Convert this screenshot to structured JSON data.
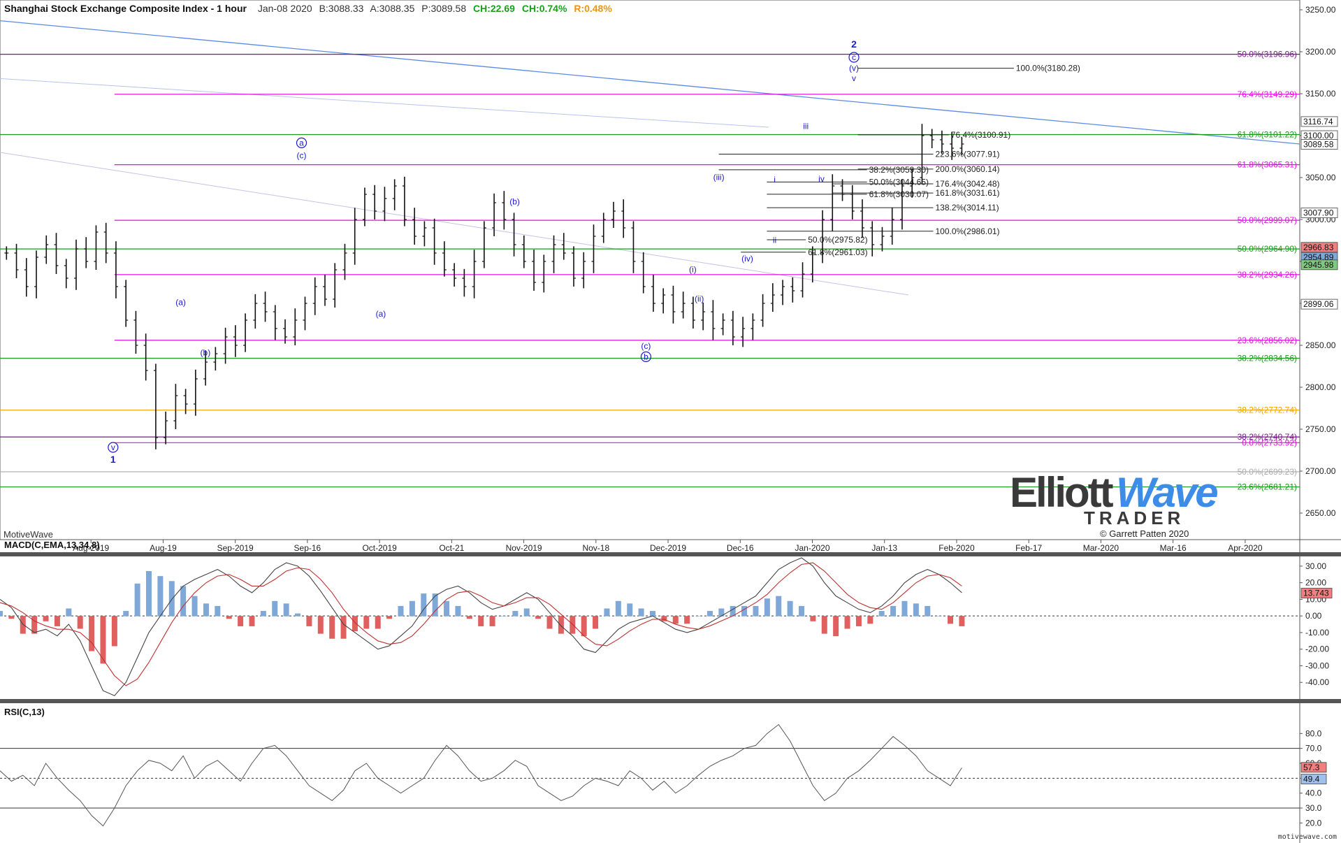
{
  "header": {
    "title": "Shanghai Stock Exchange Composite Index - 1 hour",
    "date": "Jan-08 2020",
    "bid": "B:3088.33",
    "ask": "A:3088.35",
    "price": "P:3089.58",
    "change": "CH:22.69",
    "change_pct": "CH:0.74%",
    "range_pct": "R:0.48%"
  },
  "platform_label": "MotiveWave",
  "copyright": "© Garrett Patten 2020",
  "logo": {
    "word1": "Elliott",
    "word2": "Wave",
    "word3": "TRADER"
  },
  "footer": "motivewave.com",
  "colors": {
    "price_bars": "#111111",
    "trendline": "#5b8be6",
    "fib_magenta": "#e010e0",
    "fib_green": "#1a9a1a",
    "fib_orange": "#f0a500",
    "fib_purple": "#7a1a8a",
    "wave_label": "#1a1ad0",
    "macd_pos": "#7fa8d8",
    "macd_neg": "#e06060"
  },
  "chart_data": [
    {
      "type": "line",
      "name": "price",
      "title": "Shanghai Stock Exchange Composite Index - 1 hour",
      "x_tick_labels": [
        "Aug-2019",
        "Aug-19",
        "Sep-2019",
        "Sep-16",
        "Oct-2019",
        "Oct-21",
        "Nov-2019",
        "Nov-18",
        "Dec-2019",
        "Dec-16",
        "Jan-2020",
        "Jan-13",
        "Feb-2020",
        "Feb-17",
        "Mar-2020",
        "Mar-16",
        "Apr-2020"
      ],
      "y_ticks": [
        2650,
        2700,
        2750,
        2800,
        2850,
        2900,
        2950,
        3000,
        3050,
        3100,
        3150,
        3200,
        3250
      ],
      "ylim": [
        2620,
        3260
      ],
      "x_fraction_end": 0.74,
      "close_path": [
        2960,
        2940,
        2920,
        2955,
        2970,
        2945,
        2930,
        2965,
        2950,
        2985,
        2960,
        2920,
        2880,
        2850,
        2820,
        2740,
        2760,
        2790,
        2780,
        2810,
        2830,
        2840,
        2860,
        2850,
        2880,
        2900,
        2890,
        2870,
        2860,
        2880,
        2900,
        2920,
        2905,
        2940,
        2960,
        3000,
        3030,
        3010,
        3025,
        3040,
        3000,
        2980,
        2990,
        2960,
        2940,
        2930,
        2920,
        2950,
        2990,
        3020,
        3000,
        2970,
        2950,
        2925,
        2950,
        2970,
        2960,
        2930,
        2950,
        2980,
        3000,
        3010,
        2990,
        2950,
        2920,
        2900,
        2910,
        2890,
        2900,
        2880,
        2890,
        2870,
        2880,
        2860,
        2870,
        2880,
        2900,
        2910,
        2920,
        2915,
        2935,
        2960,
        3000,
        3040,
        3030,
        3010,
        2990,
        2970,
        2980,
        3000,
        3040,
        3050,
        3100,
        3095,
        3090,
        3085,
        3090
      ],
      "price_labels": [
        {
          "text": "3116.74",
          "y": 3116.74,
          "color": "#ffffff",
          "fill": "#ffffff",
          "border": "#444"
        },
        {
          "text": "3100.00",
          "y": 3100.0,
          "fill": "#ffffff"
        },
        {
          "text": "3089.58",
          "y": 3089.58,
          "fill": "#ffffff"
        },
        {
          "text": "3007.90",
          "y": 3007.9,
          "fill": "#ffffff"
        },
        {
          "text": "2966.83",
          "y": 2966.83,
          "fill": "#f08080"
        },
        {
          "text": "2954.89",
          "y": 2954.89,
          "fill": "#7fa8d8"
        },
        {
          "text": "2945.98",
          "y": 2945.98,
          "fill": "#80c880"
        },
        {
          "text": "2899.06",
          "y": 2899.06,
          "fill": "#ffffff"
        }
      ],
      "fib_levels": [
        {
          "label": "50.0%(3196.96)",
          "y": 3196.96,
          "color": "#7a1a8a",
          "x0": 0.0
        },
        {
          "label": "76.4%(3149.29)",
          "y": 3149.29,
          "color": "#e010e0",
          "x0": 0.088
        },
        {
          "label": "61.8%(3101.22)",
          "y": 3101.22,
          "color": "#1a9a1a",
          "x0": 0.0
        },
        {
          "label": "61.8%(3065.31)",
          "y": 3065.31,
          "color": "#e010e0",
          "x0": 0.088
        },
        {
          "label": "50.0%(2999.07)",
          "y": 2999.07,
          "color": "#e010e0",
          "x0": 0.088
        },
        {
          "label": "50.0%(2964.90)",
          "y": 2964.9,
          "color": "#1a9a1a",
          "x0": 0.0
        },
        {
          "label": "38.2%(2934.26)",
          "y": 2934.26,
          "color": "#e010e0",
          "x0": 0.088
        },
        {
          "label": "23.6%(2856.02)",
          "y": 2856.02,
          "color": "#e010e0",
          "x0": 0.088
        },
        {
          "label": "38.2%(2834.56)",
          "y": 2834.56,
          "color": "#1a9a1a",
          "x0": 0.0
        },
        {
          "label": "38.2%(2772.74)",
          "y": 2772.74,
          "color": "#f0a500",
          "x0": 0.0
        },
        {
          "label": "38.2%(2740.74)",
          "y": 2740.74,
          "color": "#7a1a8a",
          "x0": 0.0
        },
        {
          "label": "0.0%(2733.92)",
          "y": 2733.92,
          "color": "#e010e0",
          "x0": 0.088
        },
        {
          "label": "50.0%(2699.23)",
          "y": 2699.23,
          "color": "#aaaaaa",
          "x0": 0.0
        },
        {
          "label": "23.6%(2681.21)",
          "y": 2681.21,
          "color": "#1a9a1a",
          "x0": 0.0
        }
      ],
      "projection_levels": [
        {
          "label": "100.0%(3180.28)",
          "y": 3180.28,
          "x0": 0.66,
          "x1": 0.78
        },
        {
          "label": "76.4%(3100.91)",
          "y": 3100.91,
          "x0": 0.66,
          "x1": 0.73
        },
        {
          "label": "223.6%(3077.91)",
          "y": 3077.91,
          "x0": 0.553,
          "x1": 0.718
        },
        {
          "label": "38.2%(3059.30)",
          "y": 3059.3,
          "x0": 0.553,
          "x1": 0.667
        },
        {
          "label": "200.0%(3060.14)",
          "y": 3060.14,
          "x0": 0.66,
          "x1": 0.718
        },
        {
          "label": "50.0%(3044.65)",
          "y": 3044.65,
          "x0": 0.59,
          "x1": 0.667
        },
        {
          "label": "176.4%(3042.48)",
          "y": 3042.48,
          "x0": 0.64,
          "x1": 0.718
        },
        {
          "label": "61.8%(3030.07)",
          "y": 3030.07,
          "x0": 0.59,
          "x1": 0.667
        },
        {
          "label": "161.8%(3031.61)",
          "y": 3031.61,
          "x0": 0.64,
          "x1": 0.718
        },
        {
          "label": "138.2%(3014.11)",
          "y": 3014.11,
          "x0": 0.59,
          "x1": 0.718
        },
        {
          "label": "100.0%(2986.01)",
          "y": 2986.01,
          "x0": 0.59,
          "x1": 0.718
        },
        {
          "label": "50.0%(2975.82)",
          "y": 2975.82,
          "x0": 0.59,
          "x1": 0.62
        },
        {
          "label": "61.8%(2961.03)",
          "y": 2961.03,
          "x0": 0.57,
          "x1": 0.62
        }
      ],
      "wave_labels": [
        {
          "text": "1",
          "x": 0.087,
          "y": 2710,
          "bold": true
        },
        {
          "text": "v",
          "x": 0.087,
          "y": 2725,
          "circle": true
        },
        {
          "text": "(a)",
          "x": 0.139,
          "y": 2898
        },
        {
          "text": "(b)",
          "x": 0.158,
          "y": 2838
        },
        {
          "text": "a",
          "x": 0.232,
          "y": 3088,
          "circle": true
        },
        {
          "text": "(c)",
          "x": 0.232,
          "y": 3073
        },
        {
          "text": "(a)",
          "x": 0.293,
          "y": 2884
        },
        {
          "text": "(b)",
          "x": 0.396,
          "y": 3018
        },
        {
          "text": "(c)",
          "x": 0.497,
          "y": 2846
        },
        {
          "text": "b",
          "x": 0.497,
          "y": 2833,
          "circle": true
        },
        {
          "text": "(i)",
          "x": 0.533,
          "y": 2937
        },
        {
          "text": "(ii)",
          "x": 0.538,
          "y": 2902
        },
        {
          "text": "(iii)",
          "x": 0.553,
          "y": 3047
        },
        {
          "text": "(iv)",
          "x": 0.575,
          "y": 2950
        },
        {
          "text": "i",
          "x": 0.596,
          "y": 3044
        },
        {
          "text": "ii",
          "x": 0.596,
          "y": 2972
        },
        {
          "text": "iii",
          "x": 0.62,
          "y": 3108
        },
        {
          "text": "iv",
          "x": 0.632,
          "y": 3045
        },
        {
          "text": "2",
          "x": 0.657,
          "y": 3205,
          "bold": true
        },
        {
          "text": "c",
          "x": 0.657,
          "y": 3190,
          "circle": true
        },
        {
          "text": "(v)",
          "x": 0.657,
          "y": 3177
        },
        {
          "text": "v",
          "x": 0.657,
          "y": 3165
        }
      ]
    },
    {
      "type": "line",
      "name": "MACD",
      "title": "MACD(C,EMA,13,34,8)",
      "y_ticks": [
        30.0,
        20.0,
        10.0,
        0.0,
        -10.0,
        -20.0,
        -30.0,
        -40.0
      ],
      "ylim": [
        -50,
        35
      ],
      "current_value": "13.743",
      "macd_path": [
        10,
        5,
        -5,
        -10,
        -8,
        -12,
        -5,
        -15,
        -30,
        -45,
        -48,
        -40,
        -25,
        -10,
        0,
        10,
        18,
        22,
        25,
        28,
        24,
        18,
        14,
        20,
        28,
        32,
        30,
        24,
        15,
        5,
        -5,
        -10,
        -15,
        -20,
        -18,
        -12,
        -6,
        4,
        12,
        16,
        18,
        14,
        8,
        4,
        6,
        10,
        14,
        10,
        2,
        -6,
        -12,
        -20,
        -22,
        -15,
        -8,
        -4,
        -2,
        0,
        -4,
        -8,
        -10,
        -8,
        -4,
        0,
        4,
        8,
        12,
        20,
        28,
        32,
        35,
        30,
        20,
        12,
        8,
        4,
        2,
        6,
        12,
        20,
        25,
        28,
        25,
        20,
        14
      ],
      "signal_path": [
        8,
        6,
        2,
        -3,
        -6,
        -8,
        -8,
        -10,
        -16,
        -26,
        -36,
        -42,
        -38,
        -28,
        -16,
        -4,
        6,
        14,
        20,
        24,
        25,
        22,
        18,
        18,
        22,
        27,
        29,
        28,
        22,
        14,
        4,
        -4,
        -10,
        -15,
        -17,
        -16,
        -12,
        -5,
        3,
        10,
        14,
        15,
        12,
        8,
        6,
        8,
        11,
        11,
        7,
        1,
        -5,
        -12,
        -17,
        -18,
        -14,
        -9,
        -5,
        -2,
        -2,
        -5,
        -7,
        -8,
        -6,
        -3,
        0,
        4,
        8,
        13,
        20,
        26,
        31,
        32,
        27,
        20,
        13,
        8,
        5,
        4,
        8,
        14,
        20,
        24,
        25,
        23,
        18
      ]
    },
    {
      "type": "line",
      "name": "RSI",
      "title": "RSI(C,13)",
      "y_ticks": [
        80.0,
        70.0,
        60.0,
        50.0,
        40.0,
        30.0,
        20.0
      ],
      "ylim": [
        15,
        90
      ],
      "levels": [
        70,
        50,
        30
      ],
      "value_a": "57.3",
      "value_b": "49.4",
      "rsi_path": [
        55,
        48,
        52,
        45,
        60,
        50,
        42,
        35,
        25,
        18,
        30,
        45,
        55,
        62,
        60,
        55,
        65,
        50,
        58,
        62,
        55,
        48,
        60,
        70,
        72,
        65,
        55,
        45,
        40,
        35,
        42,
        55,
        60,
        50,
        45,
        40,
        45,
        50,
        62,
        72,
        65,
        55,
        48,
        50,
        55,
        62,
        58,
        45,
        40,
        35,
        38,
        45,
        50,
        48,
        45,
        55,
        50,
        42,
        48,
        40,
        45,
        52,
        58,
        62,
        65,
        70,
        72,
        80,
        86,
        75,
        60,
        45,
        35,
        40,
        50,
        55,
        62,
        70,
        78,
        72,
        65,
        55,
        50,
        45,
        57
      ]
    }
  ]
}
